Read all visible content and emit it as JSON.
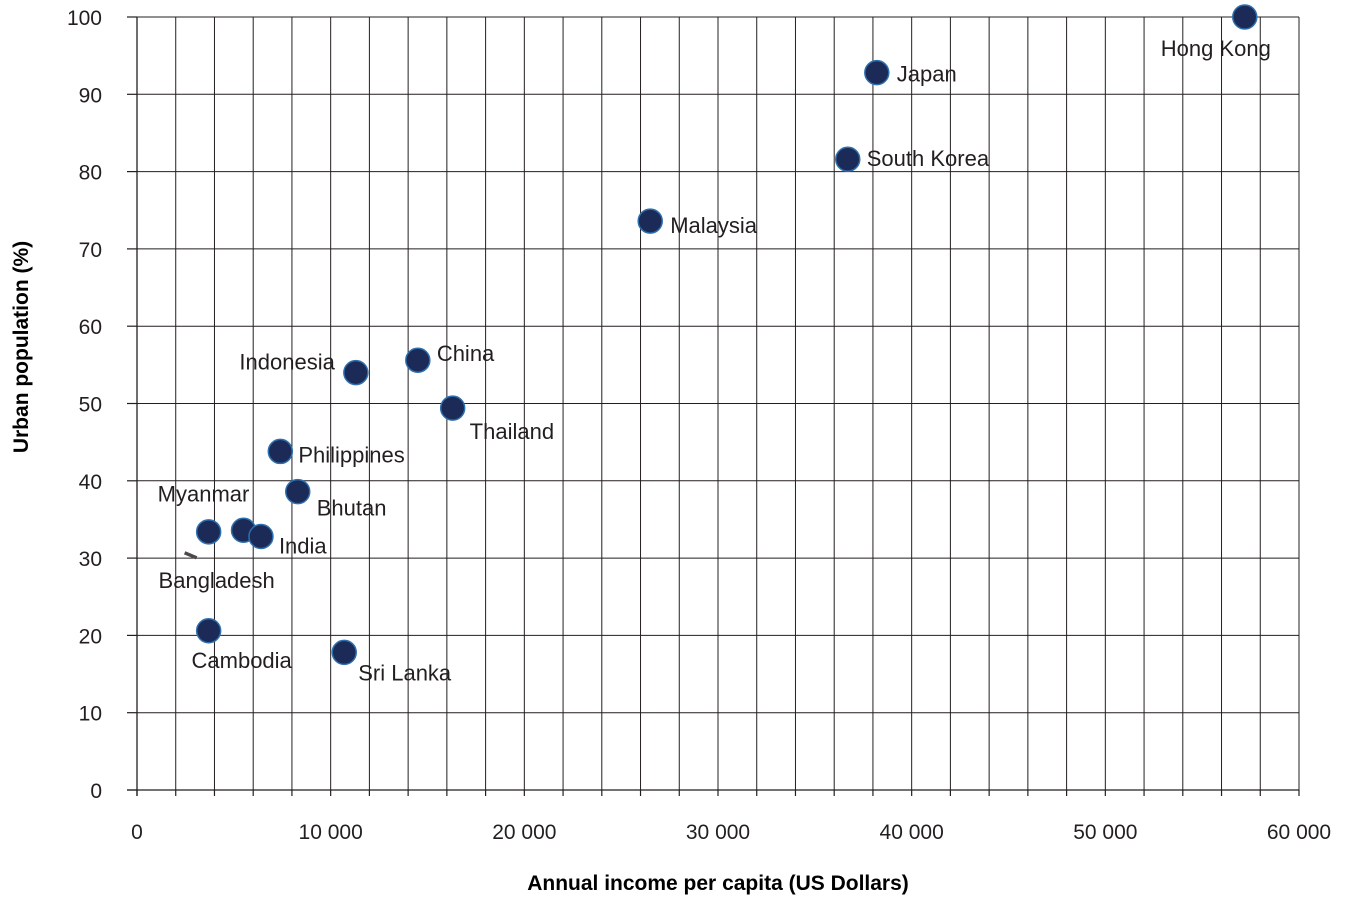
{
  "chart_data": {
    "type": "scatter",
    "title": "",
    "xlabel": "Annual income per capita (US Dollars)",
    "ylabel": "Urban population (%)",
    "xlim": [
      0,
      60000
    ],
    "ylim": [
      0,
      100
    ],
    "x_ticks": [
      0,
      10000,
      20000,
      30000,
      40000,
      50000,
      60000
    ],
    "x_tick_labels": [
      "0",
      "10 000",
      "20 000",
      "30 000",
      "40 000",
      "50 000",
      "60 000"
    ],
    "y_ticks": [
      0,
      10,
      20,
      30,
      40,
      50,
      60,
      70,
      80,
      90,
      100
    ],
    "y_tick_labels": [
      "0",
      "10",
      "20",
      "30",
      "40",
      "50",
      "60",
      "70",
      "80",
      "90",
      "100"
    ],
    "grid": true,
    "point_color": "#1b2a57",
    "point_stroke": "#2e6fad",
    "series": [
      {
        "points": [
          {
            "label": "Hong Kong",
            "x": 57200,
            "y": 100
          },
          {
            "label": "Japan",
            "x": 38200,
            "y": 92.8
          },
          {
            "label": "South Korea",
            "x": 36700,
            "y": 81.6
          },
          {
            "label": "Malaysia",
            "x": 26500,
            "y": 73.6
          },
          {
            "label": "China",
            "x": 14500,
            "y": 55.6
          },
          {
            "label": "Indonesia",
            "x": 11300,
            "y": 54
          },
          {
            "label": "Thailand",
            "x": 16300,
            "y": 49.4
          },
          {
            "label": "Philippines",
            "x": 7400,
            "y": 43.8
          },
          {
            "label": "Bhutan",
            "x": 8300,
            "y": 38.6
          },
          {
            "label": "Bangladesh",
            "x": 3700,
            "y": 33.4
          },
          {
            "label": "Myanmar",
            "x": 5500,
            "y": 33.6
          },
          {
            "label": "India",
            "x": 6400,
            "y": 32.8
          },
          {
            "label": "Cambodia",
            "x": 3700,
            "y": 20.6
          },
          {
            "label": "Sri Lanka",
            "x": 10700,
            "y": 17.8
          }
        ]
      }
    ]
  }
}
